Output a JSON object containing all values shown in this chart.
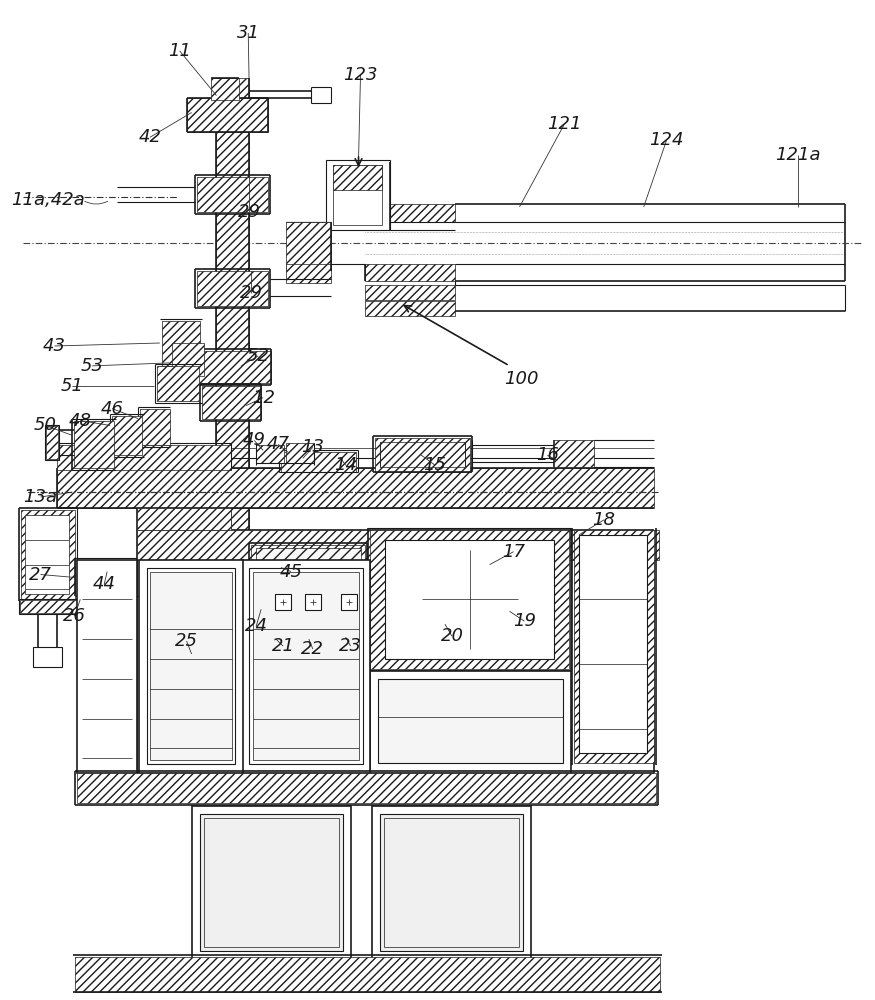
{
  "bg_color": "#ffffff",
  "line_color": "#1a1a1a",
  "figsize": [
    8.75,
    10.0
  ],
  "dpi": 100,
  "ref_labels": [
    [
      "11",
      178,
      48,
      -35,
      -30
    ],
    [
      "31",
      247,
      30,
      -15,
      -25
    ],
    [
      "123",
      358,
      72,
      0,
      -30
    ],
    [
      "121",
      565,
      125,
      -40,
      -30
    ],
    [
      "124",
      668,
      140,
      -30,
      -25
    ],
    [
      "121a",
      800,
      155,
      -30,
      -20
    ],
    [
      "11a,42a",
      28,
      198,
      0,
      0
    ],
    [
      "42",
      148,
      138,
      -5,
      -25
    ],
    [
      "29",
      248,
      210,
      -15,
      -20
    ],
    [
      "29",
      250,
      292,
      -15,
      -20
    ],
    [
      "43",
      50,
      345,
      0,
      0
    ],
    [
      "53",
      88,
      365,
      0,
      0
    ],
    [
      "51",
      70,
      385,
      0,
      0
    ],
    [
      "52",
      255,
      355,
      0,
      0
    ],
    [
      "12",
      262,
      395,
      0,
      0
    ],
    [
      "46",
      108,
      408,
      0,
      0
    ],
    [
      "48",
      80,
      420,
      0,
      0
    ],
    [
      "50",
      45,
      425,
      0,
      0
    ],
    [
      "49",
      255,
      440,
      0,
      0
    ],
    [
      "47",
      275,
      444,
      0,
      0
    ],
    [
      "13",
      312,
      445,
      0,
      0
    ],
    [
      "14",
      345,
      465,
      0,
      0
    ],
    [
      "15",
      435,
      465,
      0,
      0
    ],
    [
      "16",
      548,
      455,
      0,
      0
    ],
    [
      "13a",
      38,
      495,
      0,
      0
    ],
    [
      "100",
      520,
      378,
      0,
      0
    ],
    [
      "18",
      600,
      520,
      0,
      0
    ],
    [
      "17",
      512,
      550,
      0,
      0
    ],
    [
      "44",
      100,
      585,
      0,
      0
    ],
    [
      "27",
      38,
      575,
      0,
      0
    ],
    [
      "26",
      72,
      615,
      0,
      0
    ],
    [
      "45",
      288,
      572,
      0,
      0
    ],
    [
      "24",
      252,
      625,
      0,
      0
    ],
    [
      "25",
      185,
      640,
      0,
      0
    ],
    [
      "21",
      282,
      645,
      0,
      0
    ],
    [
      "22",
      312,
      648,
      0,
      0
    ],
    [
      "23",
      348,
      645,
      0,
      0
    ],
    [
      "20",
      450,
      635,
      0,
      0
    ],
    [
      "19",
      522,
      620,
      0,
      0
    ]
  ]
}
